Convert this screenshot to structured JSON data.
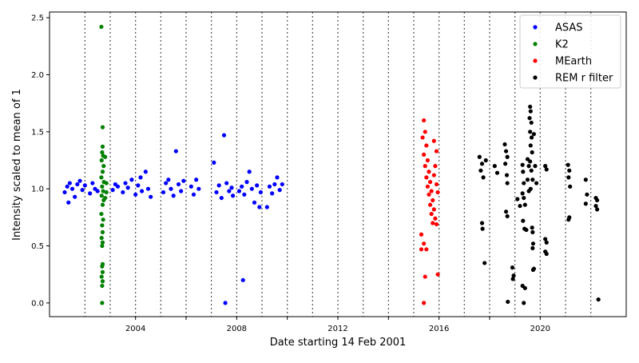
{
  "chart_data": {
    "type": "scatter",
    "xlabel": "Date starting 14 Feb 2001",
    "ylabel": "Intensity scaled to mean of 1",
    "xlim": [
      2000.6,
      2023.4
    ],
    "ylim": [
      -0.12,
      2.55
    ],
    "x_ticks": [
      2004,
      2006,
      2008,
      2010,
      2012,
      2014,
      2016,
      2018,
      2020
    ],
    "x_tick_labels": [
      "2004",
      "2008",
      "2012",
      "2016",
      "2020"
    ],
    "y_ticks": [
      0.0,
      0.5,
      1.0,
      1.5,
      2.0,
      2.5
    ],
    "y_tick_labels": [
      "0.0",
      "0.5",
      "1.0",
      "1.5",
      "2.0",
      "2.5"
    ],
    "vertical_dotted_lines": [
      2002,
      2003,
      2004,
      2005,
      2006,
      2007,
      2008,
      2009,
      2010,
      2011,
      2012,
      2013,
      2014,
      2015,
      2016,
      2017,
      2018,
      2019,
      2020,
      2021,
      2022
    ],
    "legend_position": "top-right",
    "series": [
      {
        "name": "ASAS",
        "color": "#0000ff",
        "points": [
          [
            2001.2,
            0.97
          ],
          [
            2001.3,
            1.02
          ],
          [
            2001.35,
            0.88
          ],
          [
            2001.4,
            1.05
          ],
          [
            2001.5,
            1.0
          ],
          [
            2001.6,
            0.93
          ],
          [
            2001.7,
            1.04
          ],
          [
            2001.8,
            1.07
          ],
          [
            2001.9,
            0.99
          ],
          [
            2002.0,
            1.03
          ],
          [
            2002.2,
            0.96
          ],
          [
            2002.3,
            1.05
          ],
          [
            2002.4,
            1.0
          ],
          [
            2002.5,
            0.98
          ],
          [
            2003.1,
            0.99
          ],
          [
            2003.2,
            1.04
          ],
          [
            2003.3,
            1.02
          ],
          [
            2003.5,
            0.97
          ],
          [
            2003.6,
            1.05
          ],
          [
            2003.7,
            1.01
          ],
          [
            2003.85,
            1.08
          ],
          [
            2004.0,
            0.95
          ],
          [
            2004.1,
            1.03
          ],
          [
            2004.2,
            1.1
          ],
          [
            2004.25,
            0.98
          ],
          [
            2004.4,
            1.15
          ],
          [
            2004.5,
            1.0
          ],
          [
            2004.6,
            0.93
          ],
          [
            2005.1,
            0.97
          ],
          [
            2005.2,
            1.05
          ],
          [
            2005.3,
            1.08
          ],
          [
            2005.4,
            1.0
          ],
          [
            2005.5,
            0.94
          ],
          [
            2005.6,
            1.33
          ],
          [
            2005.7,
            1.04
          ],
          [
            2005.8,
            0.98
          ],
          [
            2005.9,
            1.07
          ],
          [
            2006.2,
            1.02
          ],
          [
            2006.3,
            0.95
          ],
          [
            2006.4,
            1.08
          ],
          [
            2006.5,
            1.0
          ],
          [
            2007.1,
            1.23
          ],
          [
            2007.2,
            0.97
          ],
          [
            2007.3,
            1.03
          ],
          [
            2007.4,
            0.92
          ],
          [
            2007.5,
            1.47
          ],
          [
            2007.55,
            0.0
          ],
          [
            2007.6,
            1.05
          ],
          [
            2007.7,
            0.98
          ],
          [
            2007.8,
            1.01
          ],
          [
            2007.85,
            0.94
          ],
          [
            2008.1,
            0.98
          ],
          [
            2008.2,
            1.02
          ],
          [
            2008.25,
            0.2
          ],
          [
            2008.3,
            0.95
          ],
          [
            2008.4,
            1.06
          ],
          [
            2008.5,
            1.15
          ],
          [
            2008.6,
            1.0
          ],
          [
            2008.7,
            0.88
          ],
          [
            2008.8,
            1.03
          ],
          [
            2008.9,
            0.84
          ],
          [
            2008.95,
            0.97
          ],
          [
            2009.2,
            0.84
          ],
          [
            2009.3,
            1.02
          ],
          [
            2009.4,
            0.96
          ],
          [
            2009.5,
            1.04
          ],
          [
            2009.6,
            1.1
          ],
          [
            2009.7,
            0.99
          ],
          [
            2009.8,
            1.04
          ]
        ]
      },
      {
        "name": "K2",
        "color": "#008000",
        "points": [
          [
            2002.65,
            2.42
          ],
          [
            2002.7,
            1.54
          ],
          [
            2002.7,
            1.37
          ],
          [
            2002.68,
            1.32
          ],
          [
            2002.72,
            1.29
          ],
          [
            2002.66,
            1.25
          ],
          [
            2002.74,
            1.2
          ],
          [
            2002.7,
            1.15
          ],
          [
            2002.65,
            1.1
          ],
          [
            2002.75,
            1.06
          ],
          [
            2002.68,
            1.02
          ],
          [
            2002.72,
            0.98
          ],
          [
            2002.66,
            0.94
          ],
          [
            2002.74,
            0.9
          ],
          [
            2002.7,
            0.86
          ],
          [
            2002.65,
            0.78
          ],
          [
            2002.72,
            0.73
          ],
          [
            2002.68,
            0.68
          ],
          [
            2002.7,
            0.62
          ],
          [
            2002.66,
            0.57
          ],
          [
            2002.7,
            0.53
          ],
          [
            2002.68,
            0.5
          ],
          [
            2002.7,
            0.34
          ],
          [
            2002.68,
            0.32
          ],
          [
            2002.7,
            0.27
          ],
          [
            2002.66,
            0.23
          ],
          [
            2002.7,
            0.19
          ],
          [
            2002.68,
            0.15
          ],
          [
            2002.68,
            0.0
          ],
          [
            2002.8,
            1.28
          ],
          [
            2002.85,
            1.05
          ],
          [
            2002.8,
            0.92
          ],
          [
            2002.85,
            0.97
          ]
        ]
      },
      {
        "name": "MEarth",
        "color": "#ff0000",
        "points": [
          [
            2015.4,
            1.6
          ],
          [
            2015.45,
            1.5
          ],
          [
            2015.35,
            1.45
          ],
          [
            2015.5,
            1.38
          ],
          [
            2015.4,
            1.3
          ],
          [
            2015.55,
            1.25
          ],
          [
            2015.45,
            1.2
          ],
          [
            2015.6,
            1.15
          ],
          [
            2015.5,
            1.1
          ],
          [
            2015.65,
            1.06
          ],
          [
            2015.55,
            1.02
          ],
          [
            2015.7,
            0.98
          ],
          [
            2015.6,
            0.95
          ],
          [
            2015.75,
            0.9
          ],
          [
            2015.65,
            0.86
          ],
          [
            2015.8,
            0.82
          ],
          [
            2015.7,
            0.78
          ],
          [
            2015.85,
            0.74
          ],
          [
            2015.75,
            0.7
          ],
          [
            2015.9,
            1.04
          ],
          [
            2015.8,
            1.12
          ],
          [
            2015.95,
            0.97
          ],
          [
            2015.85,
            1.2
          ],
          [
            2015.3,
            0.6
          ],
          [
            2015.3,
            0.47
          ],
          [
            2015.5,
            0.47
          ],
          [
            2015.4,
            0.52
          ],
          [
            2015.45,
            0.23
          ],
          [
            2015.4,
            0.0
          ],
          [
            2015.8,
            1.42
          ],
          [
            2015.9,
            1.33
          ],
          [
            2015.9,
            0.69
          ],
          [
            2015.95,
            0.25
          ]
        ]
      },
      {
        "name": "REM r filter",
        "color": "#000000",
        "points": [
          [
            2017.6,
            1.28
          ],
          [
            2017.7,
            1.22
          ],
          [
            2017.65,
            1.16
          ],
          [
            2017.75,
            1.1
          ],
          [
            2017.7,
            0.7
          ],
          [
            2017.72,
            0.65
          ],
          [
            2017.8,
            0.35
          ],
          [
            2017.85,
            1.25
          ],
          [
            2018.2,
            1.2
          ],
          [
            2018.3,
            1.14
          ],
          [
            2018.6,
            1.39
          ],
          [
            2018.65,
            1.33
          ],
          [
            2018.7,
            1.28
          ],
          [
            2018.62,
            1.22
          ],
          [
            2018.68,
            1.12
          ],
          [
            2018.7,
            1.05
          ],
          [
            2018.65,
            0.8
          ],
          [
            2018.7,
            0.76
          ],
          [
            2018.72,
            0.01
          ],
          [
            2018.9,
            0.31
          ],
          [
            2018.95,
            0.24
          ],
          [
            2018.92,
            0.21
          ],
          [
            2019.1,
            0.91
          ],
          [
            2019.2,
            0.85
          ],
          [
            2019.3,
            1.21
          ],
          [
            2019.32,
            1.15
          ],
          [
            2019.35,
            1.05
          ],
          [
            2019.3,
            0.96
          ],
          [
            2019.35,
            0.92
          ],
          [
            2019.4,
            0.86
          ],
          [
            2019.32,
            0.72
          ],
          [
            2019.38,
            0.65
          ],
          [
            2019.3,
            0.15
          ],
          [
            2019.4,
            0.13
          ],
          [
            2019.35,
            0.0
          ],
          [
            2019.45,
            0.64
          ],
          [
            2019.5,
            1.26
          ],
          [
            2019.55,
            1.2
          ],
          [
            2019.5,
            1.08
          ],
          [
            2019.55,
            0.98
          ],
          [
            2019.6,
            1.72
          ],
          [
            2019.62,
            1.68
          ],
          [
            2019.58,
            1.62
          ],
          [
            2019.65,
            1.58
          ],
          [
            2019.6,
            1.5
          ],
          [
            2019.66,
            1.45
          ],
          [
            2019.62,
            1.38
          ],
          [
            2019.68,
            1.32
          ],
          [
            2019.6,
            1.24
          ],
          [
            2019.65,
            1.16
          ],
          [
            2019.7,
            1.08
          ],
          [
            2019.62,
            1.0
          ],
          [
            2019.68,
            0.66
          ],
          [
            2019.7,
            0.62
          ],
          [
            2019.72,
            0.52
          ],
          [
            2019.7,
            0.48
          ],
          [
            2019.75,
            0.3
          ],
          [
            2019.72,
            0.29
          ],
          [
            2019.8,
            1.2
          ],
          [
            2019.85,
            1.05
          ],
          [
            2019.75,
            1.48
          ],
          [
            2020.2,
            1.2
          ],
          [
            2020.25,
            1.17
          ],
          [
            2020.2,
            0.56
          ],
          [
            2020.25,
            0.53
          ],
          [
            2020.2,
            0.45
          ],
          [
            2020.25,
            0.43
          ],
          [
            2021.1,
            1.21
          ],
          [
            2021.15,
            1.16
          ],
          [
            2021.12,
            1.1
          ],
          [
            2021.18,
            1.02
          ],
          [
            2021.15,
            0.75
          ],
          [
            2021.12,
            0.73
          ],
          [
            2021.8,
            1.08
          ],
          [
            2021.85,
            0.95
          ],
          [
            2021.8,
            0.87
          ],
          [
            2022.2,
            0.92
          ],
          [
            2022.25,
            0.9
          ],
          [
            2022.2,
            0.85
          ],
          [
            2022.25,
            0.82
          ],
          [
            2022.3,
            0.03
          ]
        ]
      }
    ]
  }
}
